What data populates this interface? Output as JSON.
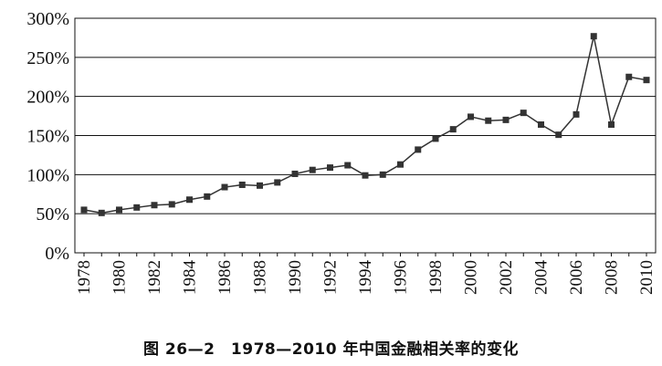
{
  "chart_data": {
    "type": "line",
    "title": "图 26—2　1978—2010 年中国金融相关率的变化",
    "xlabel": "",
    "ylabel": "",
    "ylim": [
      0,
      300
    ],
    "xlim": [
      1978,
      2010
    ],
    "y_ticks": [
      "0%",
      "50%",
      "100%",
      "150%",
      "200%",
      "250%",
      "300%"
    ],
    "x_ticks": [
      "1978",
      "1980",
      "1982",
      "1984",
      "1986",
      "1988",
      "1990",
      "1992",
      "1994",
      "1996",
      "1998",
      "2000",
      "2002",
      "2004",
      "2006",
      "2008",
      "2010"
    ],
    "grid": "horizontal",
    "legend": "none",
    "marker": "square",
    "line_color": "#333333",
    "marker_color": "#333333",
    "series": [
      {
        "x": [
          1978,
          1979,
          1980,
          1981,
          1982,
          1983,
          1984,
          1985,
          1986,
          1987,
          1988,
          1989,
          1990,
          1991,
          1992,
          1993,
          1994,
          1995,
          1996,
          1997,
          1998,
          1999,
          2000,
          2001,
          2002,
          2003,
          2004,
          2005,
          2006,
          2007,
          2008,
          2009,
          2010
        ],
        "values": [
          55,
          51,
          55,
          58,
          61,
          62,
          68,
          72,
          84,
          87,
          86,
          90,
          101,
          106,
          109,
          112,
          99,
          100,
          113,
          132,
          146,
          158,
          174,
          169,
          170,
          179,
          164,
          151,
          177,
          277,
          164,
          225,
          221
        ]
      }
    ]
  }
}
